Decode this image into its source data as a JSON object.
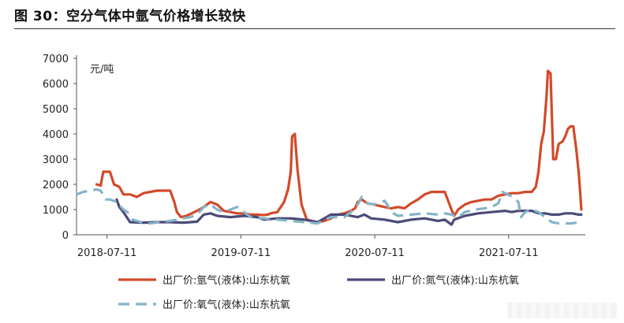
{
  "figure": {
    "title": "图 30：空分气体中氩气价格增长较快"
  },
  "chart_data": {
    "type": "line",
    "ylabel": "元/吨",
    "ylim": [
      0,
      7000
    ],
    "yticks": [
      0,
      1000,
      2000,
      3000,
      4000,
      5000,
      6000,
      7000
    ],
    "xticks": [
      "2018-07-11",
      "2019-07-11",
      "2020-07-11",
      "2021-07-11"
    ],
    "xlim": [
      2018.3,
      2022.1
    ],
    "legend_position": "bottom",
    "series": [
      {
        "name": "出厂价:氩气(液体):山东杭氧",
        "color": "#d24a2a",
        "style": "solid",
        "points": [
          [
            2018.45,
            2000
          ],
          [
            2018.48,
            1950
          ],
          [
            2018.5,
            2500
          ],
          [
            2018.55,
            2500
          ],
          [
            2018.58,
            2000
          ],
          [
            2018.62,
            1900
          ],
          [
            2018.65,
            1600
          ],
          [
            2018.7,
            1600
          ],
          [
            2018.75,
            1500
          ],
          [
            2018.8,
            1650
          ],
          [
            2018.85,
            1700
          ],
          [
            2018.9,
            1750
          ],
          [
            2018.95,
            1750
          ],
          [
            2019.0,
            1750
          ],
          [
            2019.03,
            1300
          ],
          [
            2019.05,
            900
          ],
          [
            2019.08,
            700
          ],
          [
            2019.12,
            750
          ],
          [
            2019.16,
            850
          ],
          [
            2019.2,
            950
          ],
          [
            2019.25,
            1100
          ],
          [
            2019.3,
            1300
          ],
          [
            2019.35,
            1200
          ],
          [
            2019.4,
            950
          ],
          [
            2019.45,
            900
          ],
          [
            2019.5,
            850
          ],
          [
            2019.55,
            850
          ],
          [
            2019.6,
            800
          ],
          [
            2019.65,
            800
          ],
          [
            2019.7,
            780
          ],
          [
            2019.73,
            800
          ],
          [
            2019.75,
            850
          ],
          [
            2019.8,
            900
          ],
          [
            2019.85,
            1300
          ],
          [
            2019.88,
            1800
          ],
          [
            2019.9,
            2500
          ],
          [
            2019.91,
            3900
          ],
          [
            2019.93,
            4000
          ],
          [
            2019.95,
            2600
          ],
          [
            2019.98,
            1200
          ],
          [
            2020.02,
            600
          ],
          [
            2020.06,
            550
          ],
          [
            2020.1,
            500
          ],
          [
            2020.15,
            550
          ],
          [
            2020.2,
            650
          ],
          [
            2020.25,
            800
          ],
          [
            2020.3,
            850
          ],
          [
            2020.35,
            950
          ],
          [
            2020.38,
            1050
          ],
          [
            2020.4,
            1300
          ],
          [
            2020.43,
            1400
          ],
          [
            2020.47,
            1250
          ],
          [
            2020.52,
            1200
          ],
          [
            2020.56,
            1150
          ],
          [
            2020.6,
            1100
          ],
          [
            2020.65,
            1050
          ],
          [
            2020.7,
            1100
          ],
          [
            2020.75,
            1050
          ],
          [
            2020.8,
            1250
          ],
          [
            2020.85,
            1400
          ],
          [
            2020.9,
            1600
          ],
          [
            2020.95,
            1700
          ],
          [
            2021.0,
            1700
          ],
          [
            2021.05,
            1700
          ],
          [
            2021.1,
            1000
          ],
          [
            2021.12,
            750
          ],
          [
            2021.15,
            1000
          ],
          [
            2021.2,
            1200
          ],
          [
            2021.25,
            1300
          ],
          [
            2021.3,
            1350
          ],
          [
            2021.35,
            1400
          ],
          [
            2021.4,
            1400
          ],
          [
            2021.45,
            1550
          ],
          [
            2021.5,
            1600
          ],
          [
            2021.55,
            1650
          ],
          [
            2021.6,
            1650
          ],
          [
            2021.65,
            1700
          ],
          [
            2021.7,
            1700
          ],
          [
            2021.73,
            1900
          ],
          [
            2021.75,
            2500
          ],
          [
            2021.77,
            3600
          ],
          [
            2021.79,
            4100
          ],
          [
            2021.81,
            5500
          ],
          [
            2021.82,
            6500
          ],
          [
            2021.84,
            6400
          ],
          [
            2021.86,
            3000
          ],
          [
            2021.88,
            3000
          ],
          [
            2021.9,
            3600
          ],
          [
            2021.93,
            3700
          ],
          [
            2021.95,
            3900
          ],
          [
            2021.97,
            4200
          ],
          [
            2021.99,
            4300
          ],
          [
            2022.01,
            4300
          ],
          [
            2022.03,
            3500
          ],
          [
            2022.05,
            2500
          ],
          [
            2022.06,
            1800
          ],
          [
            2022.07,
            1000
          ]
        ]
      },
      {
        "name": "出厂价:氮气(液体):山东杭氧",
        "color": "#4b4a78",
        "style": "solid",
        "points": [
          [
            2018.6,
            1400
          ],
          [
            2018.62,
            1100
          ],
          [
            2018.65,
            900
          ],
          [
            2018.7,
            500
          ],
          [
            2018.8,
            480
          ],
          [
            2018.9,
            500
          ],
          [
            2019.0,
            500
          ],
          [
            2019.1,
            480
          ],
          [
            2019.2,
            520
          ],
          [
            2019.25,
            800
          ],
          [
            2019.3,
            850
          ],
          [
            2019.35,
            750
          ],
          [
            2019.45,
            700
          ],
          [
            2019.55,
            750
          ],
          [
            2019.65,
            700
          ],
          [
            2019.7,
            600
          ],
          [
            2019.8,
            650
          ],
          [
            2019.9,
            650
          ],
          [
            2020.0,
            600
          ],
          [
            2020.1,
            500
          ],
          [
            2020.2,
            800
          ],
          [
            2020.3,
            800
          ],
          [
            2020.4,
            700
          ],
          [
            2020.45,
            800
          ],
          [
            2020.5,
            650
          ],
          [
            2020.6,
            600
          ],
          [
            2020.7,
            500
          ],
          [
            2020.8,
            600
          ],
          [
            2020.9,
            650
          ],
          [
            2021.0,
            550
          ],
          [
            2021.05,
            600
          ],
          [
            2021.1,
            400
          ],
          [
            2021.12,
            600
          ],
          [
            2021.2,
            750
          ],
          [
            2021.3,
            850
          ],
          [
            2021.4,
            900
          ],
          [
            2021.5,
            950
          ],
          [
            2021.55,
            900
          ],
          [
            2021.6,
            950
          ],
          [
            2021.7,
            950
          ],
          [
            2021.75,
            850
          ],
          [
            2021.8,
            850
          ],
          [
            2021.85,
            800
          ],
          [
            2021.9,
            800
          ],
          [
            2021.95,
            850
          ],
          [
            2022.0,
            850
          ],
          [
            2022.05,
            800
          ],
          [
            2022.07,
            800
          ]
        ]
      },
      {
        "name": "出厂价:氧气(液体):山东杭氧",
        "color": "#85b4c8",
        "style": "dashed",
        "points": [
          [
            2018.3,
            1600
          ],
          [
            2018.35,
            1700
          ],
          [
            2018.4,
            1750
          ],
          [
            2018.45,
            1800
          ],
          [
            2018.48,
            1750
          ],
          [
            2018.52,
            1400
          ],
          [
            2018.55,
            1400
          ],
          [
            2018.6,
            1300
          ],
          [
            2018.65,
            1000
          ],
          [
            2018.68,
            900
          ],
          [
            2018.72,
            600
          ],
          [
            2018.78,
            500
          ],
          [
            2018.85,
            450
          ],
          [
            2018.92,
            500
          ],
          [
            2019.0,
            550
          ],
          [
            2019.1,
            650
          ],
          [
            2019.15,
            700
          ],
          [
            2019.2,
            800
          ],
          [
            2019.25,
            1100
          ],
          [
            2019.3,
            1200
          ],
          [
            2019.35,
            1000
          ],
          [
            2019.4,
            900
          ],
          [
            2019.45,
            1000
          ],
          [
            2019.5,
            1100
          ],
          [
            2019.55,
            900
          ],
          [
            2019.6,
            700
          ],
          [
            2019.7,
            650
          ],
          [
            2019.8,
            600
          ],
          [
            2019.9,
            550
          ],
          [
            2020.0,
            500
          ],
          [
            2020.1,
            450
          ],
          [
            2020.2,
            700
          ],
          [
            2020.3,
            700
          ],
          [
            2020.35,
            900
          ],
          [
            2020.4,
            1200
          ],
          [
            2020.43,
            1500
          ],
          [
            2020.47,
            1250
          ],
          [
            2020.52,
            1200
          ],
          [
            2020.56,
            1250
          ],
          [
            2020.6,
            1350
          ],
          [
            2020.62,
            1200
          ],
          [
            2020.65,
            900
          ],
          [
            2020.7,
            750
          ],
          [
            2020.8,
            800
          ],
          [
            2020.9,
            850
          ],
          [
            2021.0,
            800
          ],
          [
            2021.05,
            850
          ],
          [
            2021.1,
            800
          ],
          [
            2021.15,
            700
          ],
          [
            2021.2,
            900
          ],
          [
            2021.28,
            1000
          ],
          [
            2021.35,
            1050
          ],
          [
            2021.4,
            1100
          ],
          [
            2021.45,
            1250
          ],
          [
            2021.48,
            1700
          ],
          [
            2021.52,
            1600
          ],
          [
            2021.56,
            1500
          ],
          [
            2021.6,
            1300
          ],
          [
            2021.62,
            700
          ],
          [
            2021.65,
            900
          ],
          [
            2021.7,
            1000
          ],
          [
            2021.75,
            900
          ],
          [
            2021.8,
            700
          ],
          [
            2021.85,
            500
          ],
          [
            2021.9,
            450
          ],
          [
            2021.95,
            450
          ],
          [
            2022.0,
            450
          ],
          [
            2022.05,
            500
          ]
        ]
      }
    ]
  }
}
